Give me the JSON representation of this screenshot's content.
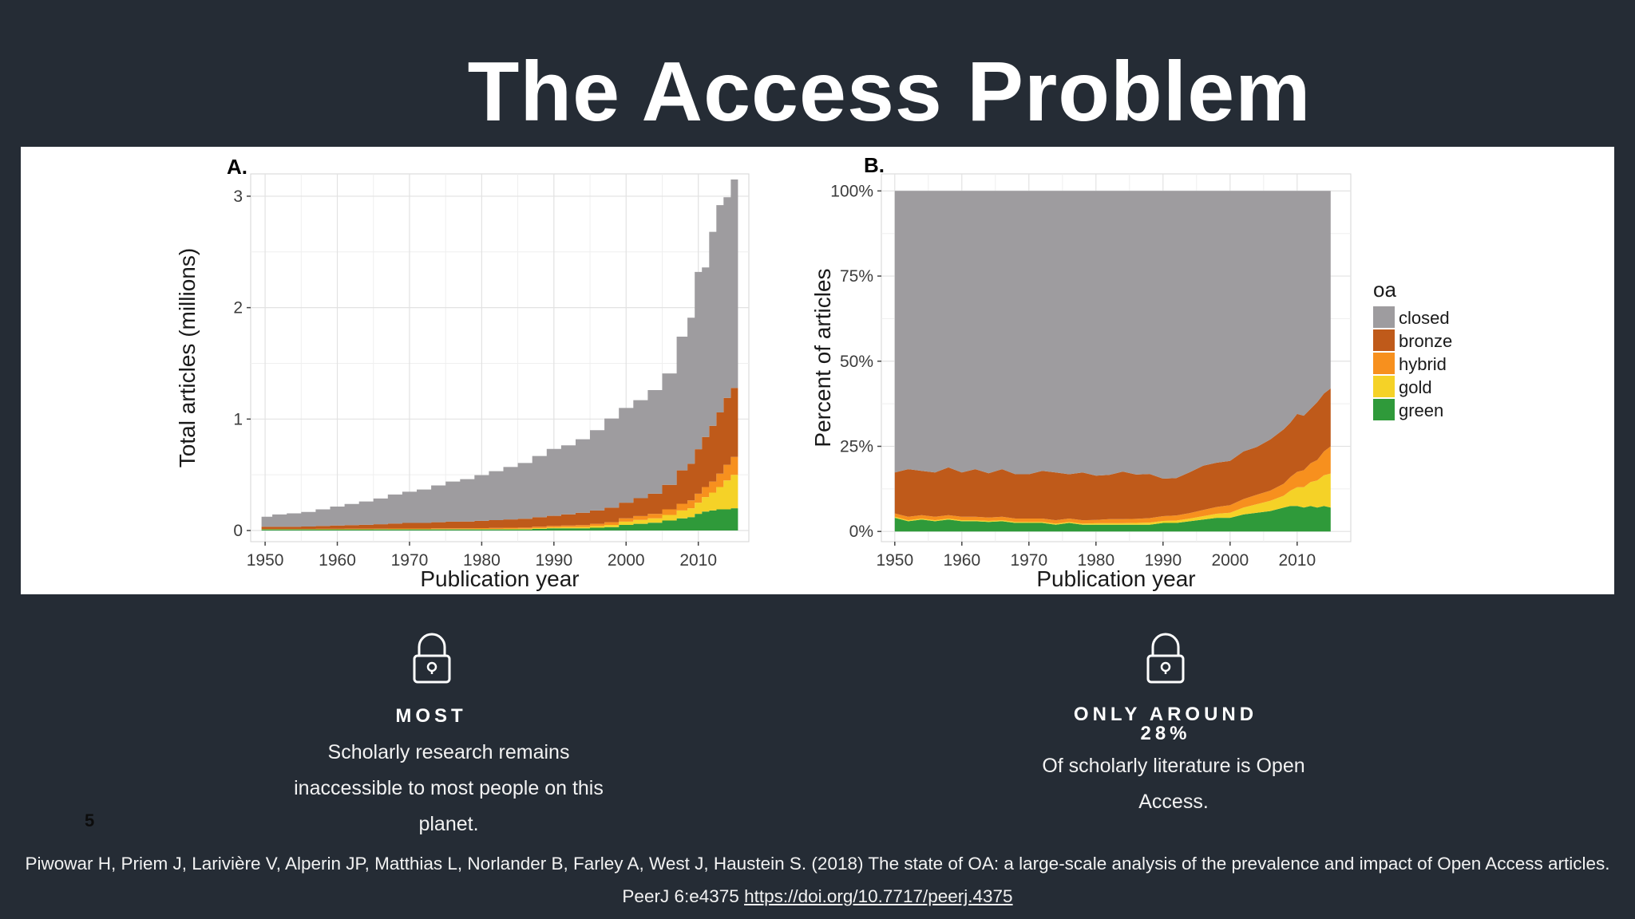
{
  "slide": {
    "title": "The Access Problem",
    "page_number": "5",
    "citation_text": "Piwowar H, Priem J, Larivière V, Alperin JP, Matthias L, Norlander B, Farley A, West J, Haustein S. (2018) The state of OA: a large-scale analysis of the prevalence and impact of Open Access articles. PeerJ 6:e4375",
    "citation_link": "https://doi.org/10.7717/peerj.4375"
  },
  "features": [
    {
      "icon": "lock-icon",
      "heading": "MOST",
      "heading2": "",
      "body_lines": [
        "Scholarly research remains",
        "inaccessible to most people on this",
        "planet."
      ]
    },
    {
      "icon": "lock-icon",
      "heading": "ONLY AROUND",
      "heading2": "28%",
      "body_lines": [
        "Of scholarly literature is Open",
        "Access."
      ]
    }
  ],
  "colors": {
    "background": "#252c35",
    "closed": "#9e9c9f",
    "bronze": "#bf5a1a",
    "hybrid": "#f7901e",
    "gold": "#f5d227",
    "green": "#2f9a3a"
  },
  "chart_data": [
    {
      "type": "area",
      "panel_label": "A.",
      "xlabel": "Publication year",
      "ylabel": "Total articles (millions)",
      "xlim": [
        1948,
        2017
      ],
      "ylim": [
        -0.1,
        3.2
      ],
      "xticks": [
        1950,
        1960,
        1970,
        1980,
        1990,
        2000,
        2010
      ],
      "yticks": [
        0,
        1,
        2,
        3
      ],
      "grid": true,
      "stacked": true,
      "step": true,
      "x": [
        1950,
        1952,
        1954,
        1956,
        1958,
        1960,
        1962,
        1964,
        1966,
        1968,
        1970,
        1972,
        1974,
        1976,
        1978,
        1980,
        1982,
        1984,
        1986,
        1988,
        1990,
        1992,
        1994,
        1996,
        1998,
        2000,
        2002,
        2004,
        2006,
        2008,
        2009,
        2010,
        2011,
        2012,
        2013,
        2014,
        2015
      ],
      "series": [
        {
          "name": "green",
          "values": [
            0.01,
            0.01,
            0.01,
            0.01,
            0.01,
            0.01,
            0.01,
            0.01,
            0.01,
            0.01,
            0.01,
            0.01,
            0.01,
            0.01,
            0.01,
            0.01,
            0.01,
            0.01,
            0.01,
            0.015,
            0.02,
            0.02,
            0.02,
            0.025,
            0.03,
            0.05,
            0.06,
            0.07,
            0.09,
            0.11,
            0.12,
            0.15,
            0.17,
            0.18,
            0.19,
            0.19,
            0.2
          ]
        },
        {
          "name": "gold",
          "values": [
            0.001,
            0.001,
            0.001,
            0.001,
            0.001,
            0.001,
            0.001,
            0.001,
            0.002,
            0.002,
            0.002,
            0.002,
            0.003,
            0.003,
            0.003,
            0.004,
            0.004,
            0.005,
            0.006,
            0.007,
            0.008,
            0.01,
            0.012,
            0.015,
            0.02,
            0.03,
            0.035,
            0.04,
            0.05,
            0.07,
            0.08,
            0.1,
            0.13,
            0.16,
            0.2,
            0.26,
            0.3
          ]
        },
        {
          "name": "hybrid",
          "values": [
            0.003,
            0.003,
            0.003,
            0.003,
            0.004,
            0.004,
            0.005,
            0.005,
            0.005,
            0.006,
            0.006,
            0.006,
            0.007,
            0.007,
            0.008,
            0.008,
            0.009,
            0.01,
            0.01,
            0.012,
            0.014,
            0.015,
            0.017,
            0.02,
            0.025,
            0.03,
            0.035,
            0.04,
            0.05,
            0.06,
            0.07,
            0.08,
            0.09,
            0.1,
            0.12,
            0.14,
            0.16
          ]
        },
        {
          "name": "bronze",
          "values": [
            0.02,
            0.02,
            0.02,
            0.022,
            0.025,
            0.03,
            0.032,
            0.035,
            0.04,
            0.045,
            0.05,
            0.05,
            0.055,
            0.06,
            0.06,
            0.065,
            0.07,
            0.075,
            0.08,
            0.085,
            0.09,
            0.1,
            0.11,
            0.12,
            0.13,
            0.14,
            0.16,
            0.18,
            0.22,
            0.3,
            0.33,
            0.4,
            0.45,
            0.5,
            0.55,
            0.6,
            0.62
          ]
        },
        {
          "name": "closed",
          "values": [
            0.09,
            0.11,
            0.12,
            0.13,
            0.15,
            0.17,
            0.19,
            0.21,
            0.23,
            0.26,
            0.28,
            0.3,
            0.33,
            0.36,
            0.38,
            0.41,
            0.44,
            0.47,
            0.5,
            0.55,
            0.6,
            0.62,
            0.66,
            0.72,
            0.8,
            0.85,
            0.88,
            0.93,
            1.0,
            1.2,
            1.31,
            1.59,
            1.52,
            1.74,
            1.86,
            1.8,
            1.87
          ]
        }
      ]
    },
    {
      "type": "area",
      "panel_label": "B.",
      "xlabel": "Publication year",
      "ylabel": "Percent of articles",
      "xlim": [
        1948,
        2018
      ],
      "ylim": [
        -0.03,
        1.05
      ],
      "xticks": [
        1950,
        1960,
        1970,
        1980,
        1990,
        2000,
        2010
      ],
      "yticks": [
        0,
        0.25,
        0.5,
        0.75,
        1.0
      ],
      "ytick_labels": [
        "0%",
        "25%",
        "50%",
        "75%",
        "100%"
      ],
      "grid": true,
      "stacked": true,
      "legend_title": "oa",
      "legend_position": "right",
      "legend": [
        "closed",
        "bronze",
        "hybrid",
        "gold",
        "green"
      ],
      "x": [
        1950,
        1952,
        1954,
        1956,
        1958,
        1960,
        1962,
        1964,
        1966,
        1968,
        1970,
        1972,
        1974,
        1976,
        1978,
        1980,
        1982,
        1984,
        1986,
        1988,
        1990,
        1992,
        1994,
        1996,
        1998,
        2000,
        2002,
        2004,
        2006,
        2008,
        2009,
        2010,
        2011,
        2012,
        2013,
        2014,
        2015
      ],
      "series": [
        {
          "name": "green",
          "values": [
            0.04,
            0.03,
            0.035,
            0.03,
            0.035,
            0.03,
            0.03,
            0.028,
            0.03,
            0.025,
            0.025,
            0.025,
            0.02,
            0.025,
            0.02,
            0.02,
            0.02,
            0.02,
            0.02,
            0.02,
            0.025,
            0.025,
            0.03,
            0.035,
            0.04,
            0.04,
            0.05,
            0.055,
            0.06,
            0.07,
            0.075,
            0.075,
            0.07,
            0.075,
            0.07,
            0.075,
            0.07
          ]
        },
        {
          "name": "gold",
          "values": [
            0.003,
            0.003,
            0.003,
            0.003,
            0.003,
            0.003,
            0.003,
            0.003,
            0.003,
            0.003,
            0.003,
            0.003,
            0.003,
            0.003,
            0.003,
            0.004,
            0.004,
            0.004,
            0.005,
            0.006,
            0.006,
            0.007,
            0.008,
            0.01,
            0.012,
            0.015,
            0.02,
            0.025,
            0.03,
            0.035,
            0.045,
            0.055,
            0.06,
            0.07,
            0.08,
            0.09,
            0.1
          ]
        },
        {
          "name": "hybrid",
          "values": [
            0.01,
            0.01,
            0.01,
            0.01,
            0.01,
            0.01,
            0.01,
            0.01,
            0.01,
            0.01,
            0.01,
            0.01,
            0.01,
            0.01,
            0.01,
            0.01,
            0.012,
            0.012,
            0.012,
            0.013,
            0.014,
            0.015,
            0.016,
            0.018,
            0.02,
            0.022,
            0.025,
            0.028,
            0.03,
            0.035,
            0.04,
            0.045,
            0.05,
            0.055,
            0.06,
            0.07,
            0.08
          ]
        },
        {
          "name": "bronze",
          "values": [
            0.12,
            0.14,
            0.13,
            0.13,
            0.14,
            0.13,
            0.14,
            0.13,
            0.14,
            0.13,
            0.13,
            0.14,
            0.14,
            0.13,
            0.14,
            0.13,
            0.13,
            0.14,
            0.13,
            0.13,
            0.11,
            0.11,
            0.12,
            0.13,
            0.13,
            0.13,
            0.14,
            0.14,
            0.15,
            0.16,
            0.16,
            0.17,
            0.16,
            0.16,
            0.17,
            0.17,
            0.17
          ]
        },
        {
          "name": "closed",
          "values": [
            0.827,
            0.817,
            0.822,
            0.827,
            0.812,
            0.827,
            0.817,
            0.829,
            0.817,
            0.832,
            0.832,
            0.822,
            0.827,
            0.832,
            0.827,
            0.836,
            0.834,
            0.824,
            0.833,
            0.831,
            0.845,
            0.843,
            0.826,
            0.807,
            0.798,
            0.793,
            0.765,
            0.752,
            0.73,
            0.7,
            0.68,
            0.655,
            0.66,
            0.64,
            0.62,
            0.595,
            0.58
          ]
        }
      ]
    }
  ]
}
